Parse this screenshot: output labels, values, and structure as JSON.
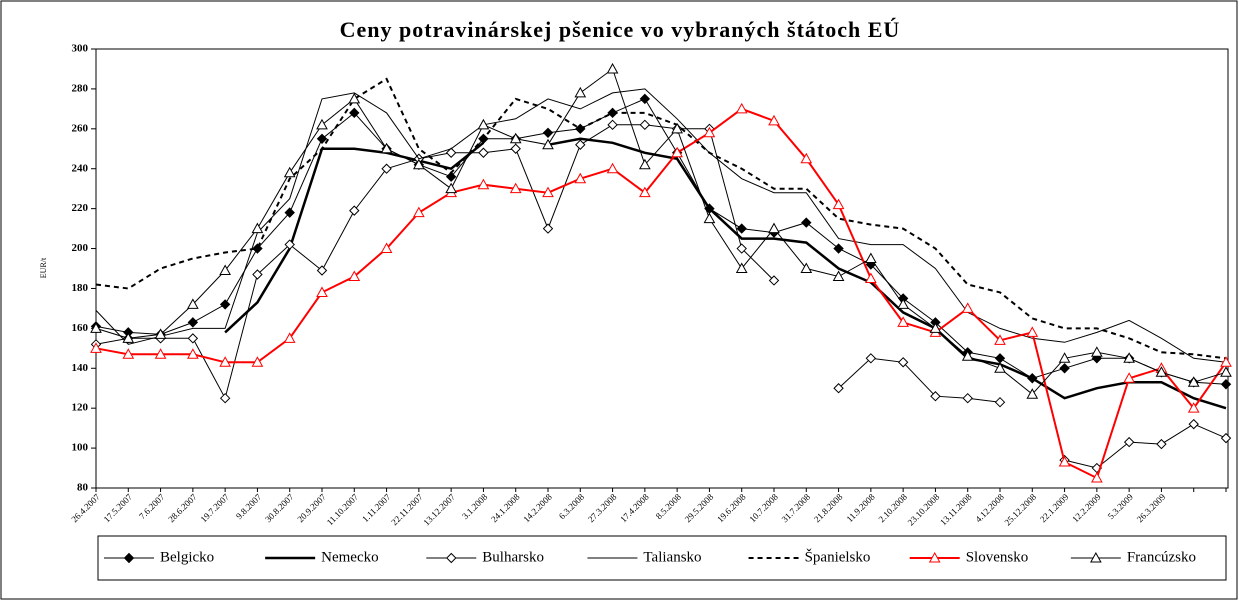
{
  "chart_data": {
    "type": "line",
    "title": "Ceny potravinárskej pšenice vo vybraných štátoch EÚ",
    "y_label": "EUR/t",
    "categories": [
      "26.4.2007",
      "17.5.2007",
      "7.6.2007",
      "28.6.2007",
      "19.7.2007",
      "9.8.2007",
      "30.8.2007",
      "20.9.2007",
      "11.10.2007",
      "1.11.2007",
      "22.11.2007",
      "13.12.2007",
      "3.1.2008",
      "24.1.2008",
      "14.2.2008",
      "6.3.2008",
      "27.3.2008",
      "17.4.2008",
      "8.5.2008",
      "29.5.2008",
      "19.6.2008",
      "10.7.2008",
      "31.7.2008",
      "21.8.2008",
      "11.9.2008",
      "2.10.2008",
      "23.10.2008",
      "13.11.2008",
      "4.12.2008",
      "25.12.2008",
      "22.1.2009",
      "12.2.2009",
      "5.3.2009",
      "26.3.2009",
      null,
      null
    ],
    "series": [
      {
        "name": "Belgicko",
        "color": "#000000",
        "width": 1,
        "dash": false,
        "marker": "diamond-filled",
        "values": [
          161,
          158,
          157,
          163,
          172,
          200,
          218,
          255,
          268,
          250,
          242,
          236,
          255,
          255,
          258,
          260,
          268,
          275,
          248,
          220,
          210,
          208,
          213,
          200,
          192,
          175,
          163,
          148,
          145,
          135,
          140,
          145,
          145,
          138,
          133,
          132
        ]
      },
      {
        "name": "Nemecko",
        "color": "#000000",
        "width": 2.5,
        "dash": false,
        "marker": "none",
        "values": [
          null,
          null,
          null,
          null,
          158,
          173,
          200,
          250,
          250,
          248,
          244,
          240,
          253,
          null,
          252,
          255,
          253,
          248,
          245,
          220,
          205,
          205,
          203,
          190,
          183,
          168,
          160,
          145,
          142,
          135,
          125,
          130,
          133,
          133,
          125,
          120
        ]
      },
      {
        "name": "Bulharsko",
        "color": "#000000",
        "width": 1,
        "dash": false,
        "marker": "diamond-open",
        "values": [
          152,
          155,
          155,
          155,
          125,
          187,
          202,
          189,
          219,
          240,
          245,
          248,
          248,
          250,
          210,
          252,
          262,
          262,
          260,
          260,
          200,
          184,
          null,
          130,
          145,
          143,
          126,
          125,
          123,
          null,
          94,
          90,
          103,
          102,
          112,
          105
        ]
      },
      {
        "name": "Taliansko",
        "color": "#000000",
        "width": 1,
        "dash": false,
        "marker": "none",
        "values": [
          169,
          152,
          156,
          160,
          160,
          208,
          225,
          275,
          278,
          268,
          245,
          250,
          262,
          265,
          275,
          270,
          278,
          280,
          265,
          248,
          235,
          228,
          228,
          205,
          202,
          202,
          190,
          168,
          160,
          155,
          153,
          158,
          164,
          155,
          145,
          143
        ]
      },
      {
        "name": "Španielsko",
        "color": "#000000",
        "width": 2,
        "dash": true,
        "marker": "none",
        "values": [
          182,
          180,
          190,
          195,
          198,
          200,
          235,
          250,
          275,
          285,
          250,
          238,
          255,
          275,
          270,
          260,
          268,
          268,
          262,
          248,
          240,
          230,
          230,
          215,
          212,
          210,
          200,
          182,
          178,
          165,
          160,
          160,
          155,
          148,
          147,
          145
        ]
      },
      {
        "name": "Slovensko",
        "color": "#ff0000",
        "width": 2,
        "dash": false,
        "marker": "triangle-open",
        "values": [
          150,
          147,
          147,
          147,
          143,
          143,
          155,
          178,
          186,
          200,
          218,
          228,
          232,
          230,
          228,
          235,
          240,
          228,
          248,
          258,
          270,
          264,
          245,
          222,
          185,
          163,
          158,
          170,
          154,
          158,
          93,
          85,
          135,
          140,
          120,
          143
        ]
      },
      {
        "name": "Francúzsko",
        "color": "#000000",
        "width": 1,
        "dash": false,
        "marker": "triangle-open",
        "values": [
          160,
          155,
          157,
          172,
          189,
          210,
          238,
          262,
          275,
          250,
          242,
          230,
          262,
          255,
          252,
          278,
          290,
          242,
          260,
          215,
          190,
          210,
          190,
          186,
          195,
          172,
          160,
          146,
          140,
          127,
          145,
          148,
          145,
          138,
          133,
          138
        ]
      }
    ],
    "ylim": [
      80,
      300
    ],
    "yticks": [
      80,
      100,
      120,
      140,
      160,
      180,
      200,
      220,
      240,
      260,
      280,
      300
    ]
  }
}
